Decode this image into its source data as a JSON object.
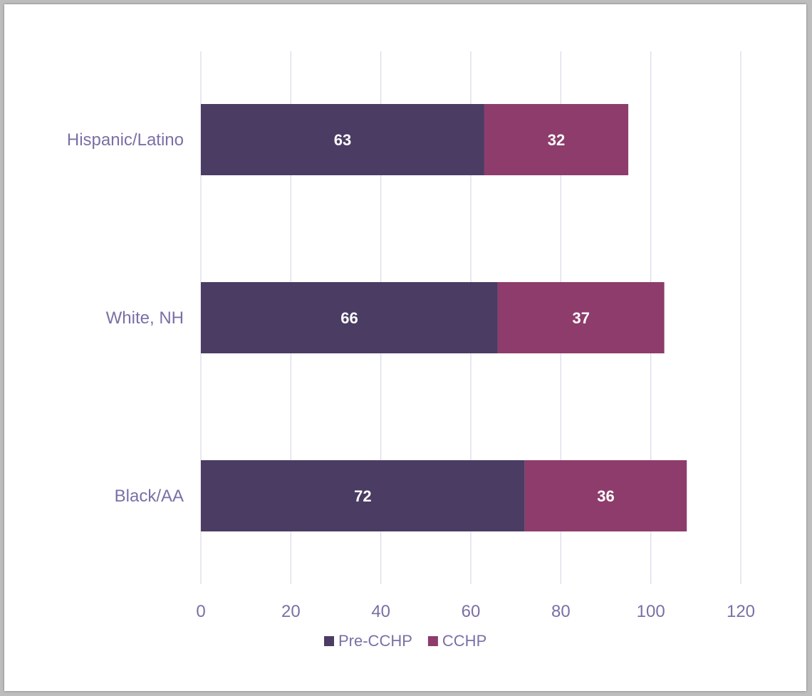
{
  "chart_data": {
    "type": "bar",
    "orientation": "horizontal",
    "stacked": true,
    "categories": [
      "Hispanic/Latino",
      "White, NH",
      "Black/AA"
    ],
    "series": [
      {
        "name": "Pre-CCHP",
        "values": [
          63,
          66,
          72
        ],
        "color": "#4a3c63"
      },
      {
        "name": "CCHP",
        "values": [
          32,
          37,
          36
        ],
        "color": "#8e3c6c"
      }
    ],
    "xlim": [
      0,
      120
    ],
    "xticks": [
      0,
      20,
      40,
      60,
      80,
      100,
      120
    ],
    "grid": "vertical",
    "legend_position": "bottom",
    "data_labels": true
  }
}
